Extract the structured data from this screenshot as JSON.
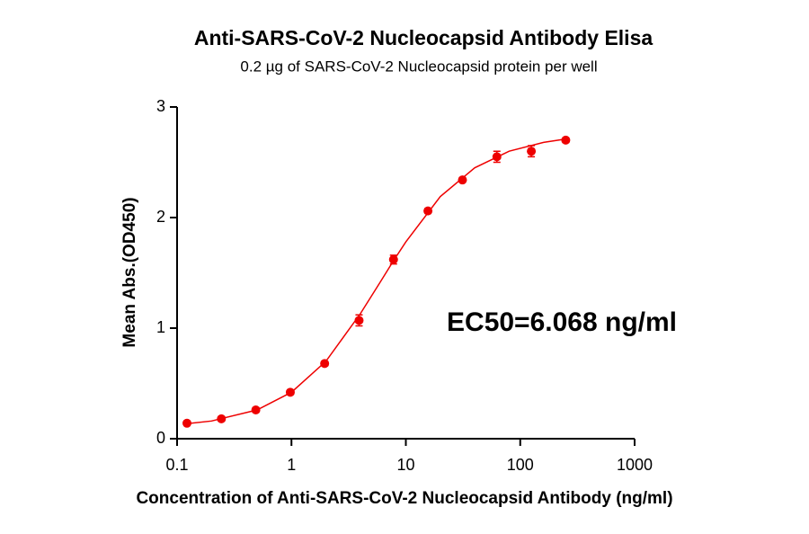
{
  "chart_data": {
    "type": "scatter",
    "title": "Anti-SARS-CoV-2 Nucleocapsid Antibody Elisa",
    "subtitle": "0.2 µg of SARS-CoV-2 Nucleocapsid protein per well",
    "x_label": "Concentration of  Anti-SARS-CoV-2 Nucleocapsid Antibody (ng/ml)",
    "y_label": "Mean Abs.(OD450)",
    "annotation": "EC50=6.068 ng/ml",
    "x_scale": "log",
    "color": "#ee0000",
    "x": [
      0.122,
      0.244,
      0.488,
      0.977,
      1.95,
      3.9,
      7.8,
      15.6,
      31.25,
      62.5,
      125,
      250
    ],
    "values": [
      0.14,
      0.18,
      0.26,
      0.42,
      0.68,
      1.07,
      1.62,
      2.06,
      2.34,
      2.55,
      2.6,
      2.7
    ],
    "errors": [
      0.02,
      0.02,
      0.02,
      0.02,
      0.02,
      0.05,
      0.04,
      0.02,
      0.02,
      0.05,
      0.05,
      0.02
    ],
    "curve": {
      "x": [
        0.12,
        0.2,
        0.5,
        1,
        2,
        4,
        6,
        7.8,
        10,
        20,
        40,
        80,
        160,
        250
      ],
      "values": [
        0.135,
        0.16,
        0.26,
        0.42,
        0.7,
        1.13,
        1.42,
        1.61,
        1.78,
        2.19,
        2.45,
        2.6,
        2.68,
        2.71
      ]
    },
    "xlim": [
      0.1,
      1000
    ],
    "xticks": [
      0.1,
      1,
      10,
      100,
      1000
    ],
    "ylim": [
      0,
      3
    ],
    "yticks": [
      0,
      1,
      2,
      3
    ]
  }
}
